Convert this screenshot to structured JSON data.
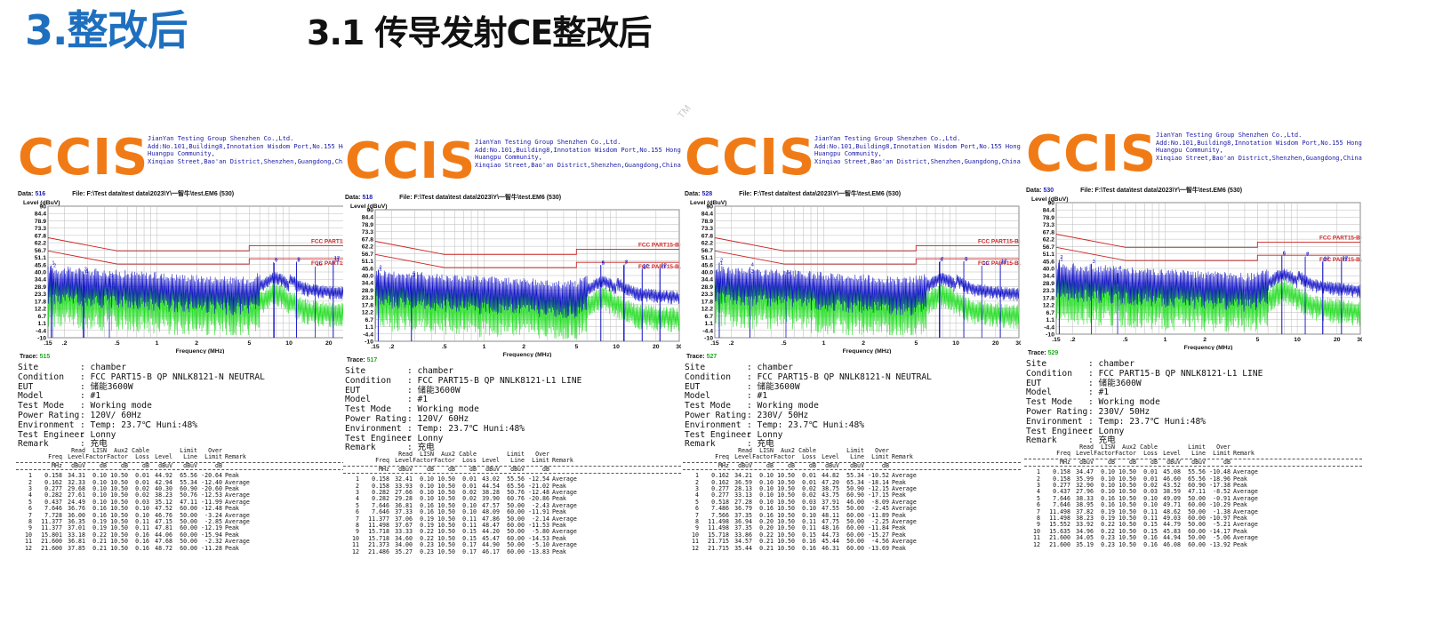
{
  "slide": {
    "title_main": "3.整改后",
    "title_sub": "3.1 传导发射CE整改后",
    "tm": "TM"
  },
  "reports": [
    {
      "logo": "CCIS",
      "company": [
        "JianYan Testing Group Shenzhen Co.,Ltd.",
        "Add:No.101,Building8,Innotation Wisdom Port,No.155 Hongtian Road,",
        "Huangpu Community,",
        "Xinqiao Street,Bao'an District,Shenzhen,Guangdong,China."
      ],
      "data_label": "Data:",
      "data_no": "516",
      "file": "File: F:\\Test data\\test data\\2023\\Y\\一智牛\\test.EM6  (530)",
      "trace_label": "Trace:",
      "trace_no": "515",
      "info": [
        [
          "Site",
          ": chamber"
        ],
        [
          "Condition",
          ": FCC PART15-B QP NNLK8121-N NEUTRAL"
        ],
        [
          "EUT",
          ": 储能3600W"
        ],
        [
          "Model",
          ": #1"
        ],
        [
          "Test Mode",
          ": Working mode"
        ],
        [
          "Power Rating",
          ": 120V/ 60Hz"
        ],
        [
          "Environment",
          ": Temp: 23.7℃ Huni:48%"
        ],
        [
          "Test Engineer",
          ": Lonny"
        ],
        [
          "Remark",
          ": 充电"
        ]
      ],
      "table": [
        [
          "1",
          "0.158",
          "34.31",
          "0.10",
          "10.50",
          "0.01",
          "44.92",
          "65.56",
          "-20.64",
          "Peak"
        ],
        [
          "2",
          "0.162",
          "32.33",
          "0.10",
          "10.50",
          "0.01",
          "42.94",
          "55.34",
          "-12.40",
          "Average"
        ],
        [
          "3",
          "0.277",
          "29.68",
          "0.10",
          "10.50",
          "0.02",
          "40.30",
          "60.90",
          "-20.60",
          "Peak"
        ],
        [
          "4",
          "0.282",
          "27.61",
          "0.10",
          "10.50",
          "0.02",
          "38.23",
          "50.76",
          "-12.53",
          "Average"
        ],
        [
          "5",
          "0.437",
          "24.49",
          "0.10",
          "10.50",
          "0.03",
          "35.12",
          "47.11",
          "-11.99",
          "Average"
        ],
        [
          "6",
          "7.646",
          "36.76",
          "0.16",
          "10.50",
          "0.10",
          "47.52",
          "60.00",
          "-12.48",
          "Peak"
        ],
        [
          "7",
          "7.728",
          "36.00",
          "0.16",
          "10.50",
          "0.10",
          "46.76",
          "50.00",
          "-3.24",
          "Average"
        ],
        [
          "8",
          "11.377",
          "36.35",
          "0.19",
          "10.50",
          "0.11",
          "47.15",
          "50.00",
          "-2.85",
          "Average"
        ],
        [
          "9",
          "11.377",
          "37.01",
          "0.19",
          "10.50",
          "0.11",
          "47.81",
          "60.00",
          "-12.19",
          "Peak"
        ],
        [
          "10",
          "15.801",
          "33.18",
          "0.22",
          "10.50",
          "0.16",
          "44.06",
          "60.00",
          "-15.94",
          "Peak"
        ],
        [
          "11",
          "21.600",
          "36.81",
          "0.21",
          "10.50",
          "0.16",
          "47.68",
          "50.00",
          "-2.32",
          "Average"
        ],
        [
          "12",
          "21.600",
          "37.85",
          "0.21",
          "10.50",
          "0.16",
          "48.72",
          "60.00",
          "-11.28",
          "Peak"
        ]
      ]
    },
    {
      "logo": "CCIS",
      "company": [
        "JianYan Testing Group Shenzhen Co.,Ltd.",
        "Add:No.101,Building8,Innotation Wisdom Port,No.155 Hongtian Road,",
        "Huangpu Community,",
        "Xinqiao Street,Bao'an District,Shenzhen,Guangdong,China."
      ],
      "data_label": "Data:",
      "data_no": "518",
      "file": "File: F:\\Test data\\test data\\2023\\Y\\一智牛\\test.EM6  (530)",
      "trace_label": "Trace:",
      "trace_no": "517",
      "info": [
        [
          "Site",
          ": chamber"
        ],
        [
          "Condition",
          ": FCC PART15-B QP NNLK8121-L1 LINE"
        ],
        [
          "EUT",
          ": 储能3600W"
        ],
        [
          "Model",
          ": #1"
        ],
        [
          "Test Mode",
          ": Working mode"
        ],
        [
          "Power Rating",
          ": 120V/ 60Hz"
        ],
        [
          "Environment",
          ": Temp: 23.7℃ Huni:48%"
        ],
        [
          "Test Engineer",
          ": Lonny"
        ],
        [
          "Remark",
          ": 充电"
        ]
      ],
      "table": [
        [
          "1",
          "0.158",
          "32.41",
          "0.10",
          "10.50",
          "0.01",
          "43.02",
          "55.56",
          "-12.54",
          "Average"
        ],
        [
          "2",
          "0.158",
          "33.93",
          "0.10",
          "10.50",
          "0.01",
          "44.54",
          "65.56",
          "-21.02",
          "Peak"
        ],
        [
          "3",
          "0.282",
          "27.66",
          "0.10",
          "10.50",
          "0.02",
          "38.28",
          "50.76",
          "-12.48",
          "Average"
        ],
        [
          "4",
          "0.282",
          "29.28",
          "0.10",
          "10.50",
          "0.02",
          "39.90",
          "60.76",
          "-20.86",
          "Peak"
        ],
        [
          "5",
          "7.646",
          "36.81",
          "0.16",
          "10.50",
          "0.10",
          "47.57",
          "50.00",
          "-2.43",
          "Average"
        ],
        [
          "6",
          "7.646",
          "37.33",
          "0.16",
          "10.50",
          "0.10",
          "48.09",
          "60.00",
          "-11.91",
          "Peak"
        ],
        [
          "7",
          "11.377",
          "37.06",
          "0.19",
          "10.50",
          "0.11",
          "47.86",
          "50.00",
          "-2.14",
          "Average"
        ],
        [
          "8",
          "11.498",
          "37.67",
          "0.19",
          "10.50",
          "0.11",
          "48.47",
          "60.00",
          "-11.53",
          "Peak"
        ],
        [
          "9",
          "15.718",
          "33.33",
          "0.22",
          "10.50",
          "0.15",
          "44.20",
          "50.00",
          "-5.80",
          "Average"
        ],
        [
          "10",
          "15.718",
          "34.60",
          "0.22",
          "10.50",
          "0.15",
          "45.47",
          "60.00",
          "-14.53",
          "Peak"
        ],
        [
          "11",
          "21.373",
          "34.00",
          "0.23",
          "10.50",
          "0.17",
          "44.90",
          "50.00",
          "-5.10",
          "Average"
        ],
        [
          "12",
          "21.486",
          "35.27",
          "0.23",
          "10.50",
          "0.17",
          "46.17",
          "60.00",
          "-13.83",
          "Peak"
        ]
      ]
    },
    {
      "logo": "CCIS",
      "company": [
        "JianYan Testing Group Shenzhen Co.,Ltd.",
        "Add:No.101,Building8,Innotation Wisdom Port,No.155 Hongtian Road,",
        "Huangpu Community,",
        "Xinqiao Street,Bao'an District,Shenzhen,Guangdong,China."
      ],
      "data_label": "Data:",
      "data_no": "528",
      "file": "File: F:\\Test data\\test data\\2023\\Y\\一智牛\\test.EM6  (530)",
      "trace_label": "Trace:",
      "trace_no": "527",
      "info": [
        [
          "Site",
          ": chamber"
        ],
        [
          "Condition",
          ": FCC PART15-B QP NNLK8121-N NEUTRAL"
        ],
        [
          "EUT",
          ": 储能3600W"
        ],
        [
          "Model",
          ": #1"
        ],
        [
          "Test Mode",
          ": Working mode"
        ],
        [
          "Power Rating",
          ": 230V/ 50Hz"
        ],
        [
          "Environment",
          ": Temp: 23.7℃ Huni:48%"
        ],
        [
          "Test Engineer",
          ": Lonny"
        ],
        [
          "Remark",
          ": 充电"
        ]
      ],
      "table": [
        [
          "1",
          "0.162",
          "34.21",
          "0.10",
          "10.50",
          "0.01",
          "44.82",
          "55.34",
          "-10.52",
          "Average"
        ],
        [
          "2",
          "0.162",
          "36.59",
          "0.10",
          "10.50",
          "0.01",
          "47.20",
          "65.34",
          "-18.14",
          "Peak"
        ],
        [
          "3",
          "0.277",
          "28.13",
          "0.10",
          "10.50",
          "0.02",
          "38.75",
          "50.90",
          "-12.15",
          "Average"
        ],
        [
          "4",
          "0.277",
          "33.13",
          "0.10",
          "10.50",
          "0.02",
          "43.75",
          "60.90",
          "-17.15",
          "Peak"
        ],
        [
          "5",
          "0.518",
          "27.28",
          "0.10",
          "10.50",
          "0.03",
          "37.91",
          "46.00",
          "-8.09",
          "Average"
        ],
        [
          "6",
          "7.486",
          "36.79",
          "0.16",
          "10.50",
          "0.10",
          "47.55",
          "50.00",
          "-2.45",
          "Average"
        ],
        [
          "7",
          "7.566",
          "37.35",
          "0.16",
          "10.50",
          "0.10",
          "48.11",
          "60.00",
          "-11.89",
          "Peak"
        ],
        [
          "8",
          "11.498",
          "36.94",
          "0.20",
          "10.50",
          "0.11",
          "47.75",
          "50.00",
          "-2.25",
          "Average"
        ],
        [
          "9",
          "11.498",
          "37.35",
          "0.20",
          "10.50",
          "0.11",
          "48.16",
          "60.00",
          "-11.84",
          "Peak"
        ],
        [
          "10",
          "15.718",
          "33.86",
          "0.22",
          "10.50",
          "0.15",
          "44.73",
          "60.00",
          "-15.27",
          "Peak"
        ],
        [
          "11",
          "21.715",
          "34.57",
          "0.21",
          "10.50",
          "0.16",
          "45.44",
          "50.00",
          "-4.56",
          "Average"
        ],
        [
          "12",
          "21.715",
          "35.44",
          "0.21",
          "10.50",
          "0.16",
          "46.31",
          "60.00",
          "-13.69",
          "Peak"
        ]
      ]
    },
    {
      "logo": "CCIS",
      "company": [
        "JianYan Testing Group Shenzhen Co.,Ltd.",
        "Add:No.101,Building8,Innotation Wisdom Port,No.155 Hongtian Road,",
        "Huangpu Community,",
        "Xinqiao Street,Bao'an District,Shenzhen,Guangdong,China."
      ],
      "data_label": "Data:",
      "data_no": "530",
      "file": "File: F:\\Test data\\test data\\2023\\Y\\一智牛\\test.EM6  (530)",
      "trace_label": "Trace:",
      "trace_no": "529",
      "info": [
        [
          "Site",
          ": chamber"
        ],
        [
          "Condition",
          ": FCC PART15-B QP NNLK8121-L1 LINE"
        ],
        [
          "EUT",
          ": 储能3600W"
        ],
        [
          "Model",
          ": #1"
        ],
        [
          "Test Mode",
          ": Working mode"
        ],
        [
          "Power Rating",
          ": 230V/ 50Hz"
        ],
        [
          "Environment",
          ": Temp: 23.7℃ Huni:48%"
        ],
        [
          "Test Engineer",
          ": Lonny"
        ],
        [
          "Remark",
          ": 充电"
        ]
      ],
      "table": [
        [
          "1",
          "0.158",
          "34.47",
          "0.10",
          "10.50",
          "0.01",
          "45.08",
          "55.56",
          "-10.48",
          "Average"
        ],
        [
          "2",
          "0.158",
          "35.99",
          "0.10",
          "10.50",
          "0.01",
          "46.60",
          "65.56",
          "-18.96",
          "Peak"
        ],
        [
          "3",
          "0.277",
          "32.90",
          "0.10",
          "10.50",
          "0.02",
          "43.52",
          "60.90",
          "-17.38",
          "Peak"
        ],
        [
          "4",
          "0.437",
          "27.96",
          "0.10",
          "10.50",
          "0.03",
          "38.59",
          "47.11",
          "-8.52",
          "Average"
        ],
        [
          "5",
          "7.646",
          "38.33",
          "0.16",
          "10.50",
          "0.10",
          "49.09",
          "50.00",
          "-0.91",
          "Average"
        ],
        [
          "6",
          "7.646",
          "38.95",
          "0.16",
          "10.50",
          "0.10",
          "49.71",
          "60.00",
          "-10.29",
          "Peak"
        ],
        [
          "7",
          "11.498",
          "37.82",
          "0.19",
          "10.50",
          "0.11",
          "48.62",
          "50.00",
          "-1.38",
          "Average"
        ],
        [
          "8",
          "11.498",
          "38.23",
          "0.19",
          "10.50",
          "0.11",
          "49.03",
          "60.00",
          "-10.97",
          "Peak"
        ],
        [
          "9",
          "15.552",
          "33.92",
          "0.22",
          "10.50",
          "0.15",
          "44.79",
          "50.00",
          "-5.21",
          "Average"
        ],
        [
          "10",
          "15.635",
          "34.96",
          "0.22",
          "10.50",
          "0.15",
          "45.83",
          "60.00",
          "-14.17",
          "Peak"
        ],
        [
          "11",
          "21.600",
          "34.05",
          "0.23",
          "10.50",
          "0.16",
          "44.94",
          "50.00",
          "-5.06",
          "Average"
        ],
        [
          "12",
          "21.600",
          "35.19",
          "0.23",
          "10.50",
          "0.16",
          "46.08",
          "60.00",
          "-13.92",
          "Peak"
        ]
      ]
    }
  ],
  "table_headers": {
    "line1": [
      "",
      "",
      "Read",
      "LISN",
      "Aux2",
      "Cable",
      "",
      "Limit",
      "Over",
      ""
    ],
    "line2": [
      "",
      "Freq",
      "Level",
      "Factor",
      "Factor",
      "Loss",
      "Level",
      "Line",
      "Limit",
      "Remark"
    ],
    "units": [
      "",
      "MHz",
      "dBuV",
      "dB",
      "dB",
      "dB",
      "dBuV",
      "dBuV",
      "dB",
      ""
    ]
  },
  "chart_data": {
    "type": "line",
    "ylabel": "Level (dBuV)",
    "xlabel": "Frequency (MHz)",
    "x_scale": "log",
    "xlim": [
      0.15,
      30
    ],
    "ylim": [
      -10,
      90
    ],
    "y_ticks": [
      "90",
      "84.4",
      "78.9",
      "73.3",
      "67.8",
      "62.2",
      "56.7",
      "51.1",
      "45.6",
      "40.0",
      "34.4",
      "28.9",
      "23.3",
      "17.8",
      "12.2",
      "6.7",
      "1.1",
      "-4.4",
      "-10"
    ],
    "x_ticks": [
      ".15",
      ".2",
      ".5",
      "1",
      "2",
      "5",
      "10",
      "20",
      "30"
    ],
    "limit_qp_label": "FCC PART15-B QP",
    "limit_av_label": "FCC PART15-B AV",
    "limit_qp": [
      [
        0.15,
        66
      ],
      [
        0.5,
        56
      ],
      [
        5,
        56
      ],
      [
        5,
        60
      ],
      [
        30,
        60
      ]
    ],
    "limit_av": [
      [
        0.15,
        56
      ],
      [
        0.5,
        46
      ],
      [
        5,
        46
      ],
      [
        5,
        50
      ],
      [
        30,
        50
      ]
    ],
    "series": [
      {
        "color": "#1414c8",
        "values": []
      },
      {
        "color": "#22dd22",
        "values": []
      }
    ],
    "grid": true
  }
}
